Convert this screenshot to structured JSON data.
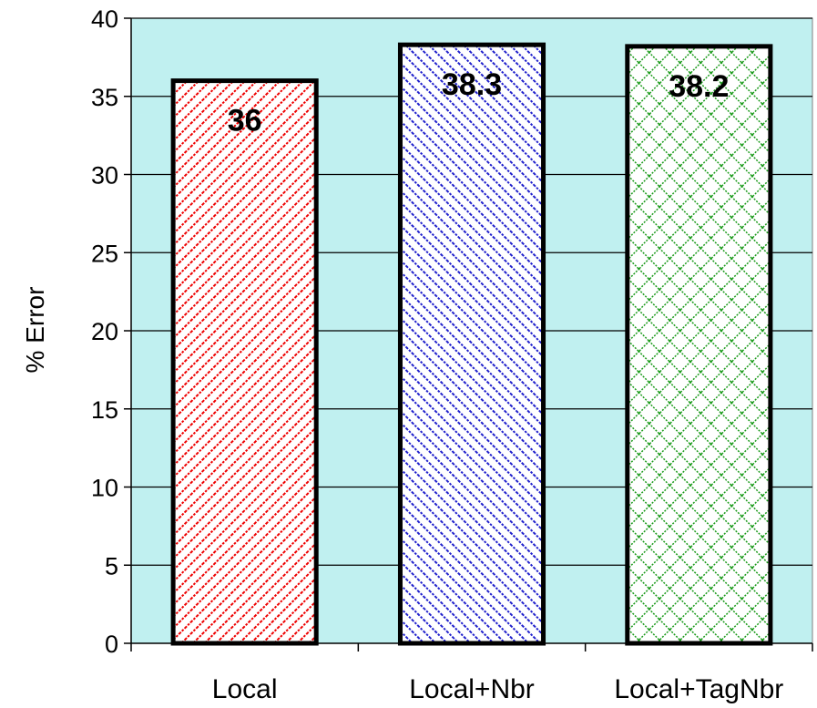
{
  "chart_data": {
    "type": "bar",
    "title": "",
    "xlabel": "",
    "ylabel": "% Error",
    "ylim": [
      0,
      40
    ],
    "yticks": [
      0,
      5,
      10,
      15,
      20,
      25,
      30,
      35,
      40
    ],
    "grid": true,
    "legend": "none",
    "plot_background": "#c0f0f0",
    "categories": [
      "Local",
      "Local+Nbr",
      "Local+TagNbr"
    ],
    "values": [
      36,
      38.3,
      38.2
    ],
    "data_labels": [
      "36",
      "38.3",
      "38.2"
    ],
    "bar_colors": [
      "#ee0000",
      "#2020cc",
      "#1a9a1a"
    ],
    "bar_patterns": [
      "diagonal-hatch",
      "diagonal-hatch",
      "diamond-crosshatch"
    ]
  }
}
